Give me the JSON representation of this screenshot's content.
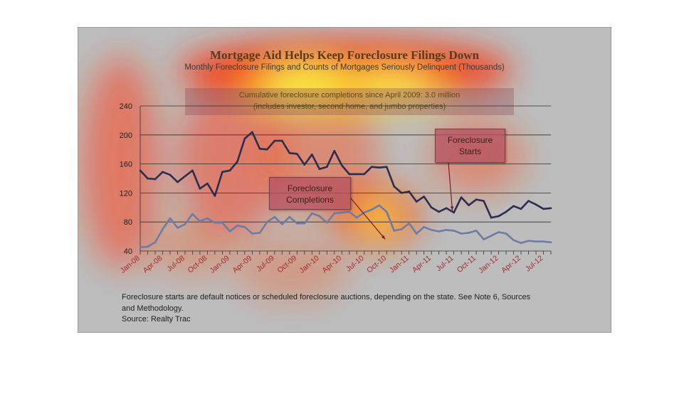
{
  "colors": {
    "starts_line": "#2b2d4f",
    "completions_line": "#6b7da6",
    "grid": "#303030",
    "tick_label": "#1e1e1e",
    "date_label": "#a02d2d",
    "heat_hot": "#ffff33",
    "heat_warm": "#ff3300"
  },
  "chart_data": {
    "type": "line",
    "title": "Mortgage Aid Helps Keep Foreclosure Filings Down",
    "subtitle": "Monthly Foreclosure Filings and Counts of Mortgages Seriously Delinquent (Thousands)",
    "xlabel": "",
    "ylabel": "",
    "ylim": [
      40,
      240
    ],
    "yticks": [
      40,
      80,
      120,
      160,
      200,
      240
    ],
    "grid": true,
    "legend": "none",
    "annotation": {
      "line1": "Cumulative foreclosure completions since April 2009: 3.0 million",
      "line2": "(includes investor, second home, and jumbo properties)"
    },
    "callouts": [
      {
        "lines": [
          "Foreclosure",
          "Starts"
        ],
        "series": 0,
        "target_index": 42
      },
      {
        "lines": [
          "Foreclosure",
          "Completions"
        ],
        "series": 1,
        "target_index": 34
      }
    ],
    "tick_labels": [
      "Jan-08",
      "Apr-08",
      "Jul-08",
      "Oct-08",
      "Jan-09",
      "Apr-09",
      "Jul-09",
      "Oct-09",
      "Jan-10",
      "Apr-10",
      "Jul-10",
      "Oct-10",
      "Jan-11",
      "Apr-11",
      "Jul-11",
      "Oct-11",
      "Jan-12",
      "Apr-12",
      "Jul-12"
    ],
    "x": [
      "Jan-08",
      "Feb-08",
      "Mar-08",
      "Apr-08",
      "May-08",
      "Jun-08",
      "Jul-08",
      "Aug-08",
      "Sep-08",
      "Oct-08",
      "Nov-08",
      "Dec-08",
      "Jan-09",
      "Feb-09",
      "Mar-09",
      "Apr-09",
      "May-09",
      "Jun-09",
      "Jul-09",
      "Aug-09",
      "Sep-09",
      "Oct-09",
      "Nov-09",
      "Dec-09",
      "Jan-10",
      "Feb-10",
      "Mar-10",
      "Apr-10",
      "May-10",
      "Jun-10",
      "Jul-10",
      "Aug-10",
      "Sep-10",
      "Oct-10",
      "Nov-10",
      "Dec-10",
      "Jan-11",
      "Feb-11",
      "Mar-11",
      "Apr-11",
      "May-11",
      "Jun-11",
      "Jul-11",
      "Aug-11",
      "Sep-11",
      "Oct-11",
      "Nov-11",
      "Dec-11",
      "Jan-12",
      "Feb-12",
      "Mar-12",
      "Apr-12",
      "May-12",
      "Jun-12",
      "Jul-12",
      "Aug-12"
    ],
    "series": [
      {
        "values": [
          151,
          140,
          139,
          149,
          145,
          135,
          143,
          151,
          126,
          133,
          116,
          149,
          151,
          163,
          195,
          204,
          181,
          180,
          192,
          192,
          175,
          174,
          159,
          173,
          153,
          156,
          178,
          158,
          146,
          146,
          146,
          156,
          155,
          156,
          129,
          120,
          122,
          108,
          115,
          100,
          94,
          99,
          93,
          114,
          103,
          111,
          109,
          86,
          88,
          94,
          102,
          98,
          109,
          104,
          98,
          99
        ]
      },
      {
        "values": [
          45,
          46,
          52,
          70,
          85,
          72,
          77,
          91,
          81,
          85,
          79,
          79,
          67,
          75,
          73,
          64,
          65,
          80,
          87,
          77,
          87,
          78,
          78,
          92,
          88,
          79,
          92,
          93,
          94,
          86,
          93,
          97,
          103,
          94,
          68,
          70,
          78,
          64,
          73,
          69,
          67,
          69,
          68,
          64,
          65,
          68,
          56,
          61,
          66,
          64,
          55,
          51,
          54,
          53,
          53,
          52
        ]
      }
    ],
    "footnote": {
      "line1": "Foreclosure starts are default notices or scheduled foreclosure auctions, depending on the state. See Note 6, Sources",
      "line2": "and Methodology.",
      "source": "Source: Realty Trac"
    }
  }
}
